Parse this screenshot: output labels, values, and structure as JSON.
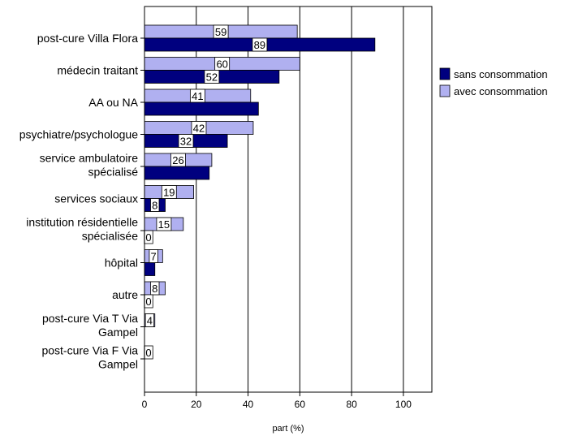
{
  "chart_data": {
    "type": "bar",
    "orientation": "horizontal",
    "categories": [
      [
        "post-cure Villa Flora"
      ],
      [
        "médecin traitant"
      ],
      [
        "AA ou NA"
      ],
      [
        "psychiatre/psychologue"
      ],
      [
        "service ambulatoire",
        "spécialisé"
      ],
      [
        "services sociaux"
      ],
      [
        "institution résidentielle",
        "spécialisée"
      ],
      [
        "hôpital"
      ],
      [
        "autre"
      ],
      [
        "post-cure Via T Via",
        "Gampel"
      ],
      [
        "post-cure Via F Via",
        "Gampel"
      ]
    ],
    "series": [
      {
        "name": "sans consommation",
        "color": "#00007F",
        "values": [
          89,
          52,
          44,
          32,
          25,
          8,
          0,
          4,
          0,
          0,
          0
        ],
        "labels": [
          "89",
          "52",
          "",
          "32",
          "",
          "8",
          "0",
          "",
          "0",
          "",
          ""
        ]
      },
      {
        "name": "avec consommation",
        "color": "#B0B0F0",
        "values": [
          59,
          60,
          41,
          42,
          26,
          19,
          15,
          7,
          8,
          4,
          0
        ],
        "labels": [
          "59",
          "60",
          "41",
          "42",
          "26",
          "19",
          "15",
          "7",
          "8",
          "4",
          "0"
        ]
      }
    ],
    "xlabel": "part (%)",
    "ylabel": "",
    "xlim": [
      0,
      111
    ],
    "xticks": [
      "0",
      "20",
      "40",
      "60",
      "80",
      "100"
    ],
    "grid": true,
    "legend_position": "right"
  }
}
